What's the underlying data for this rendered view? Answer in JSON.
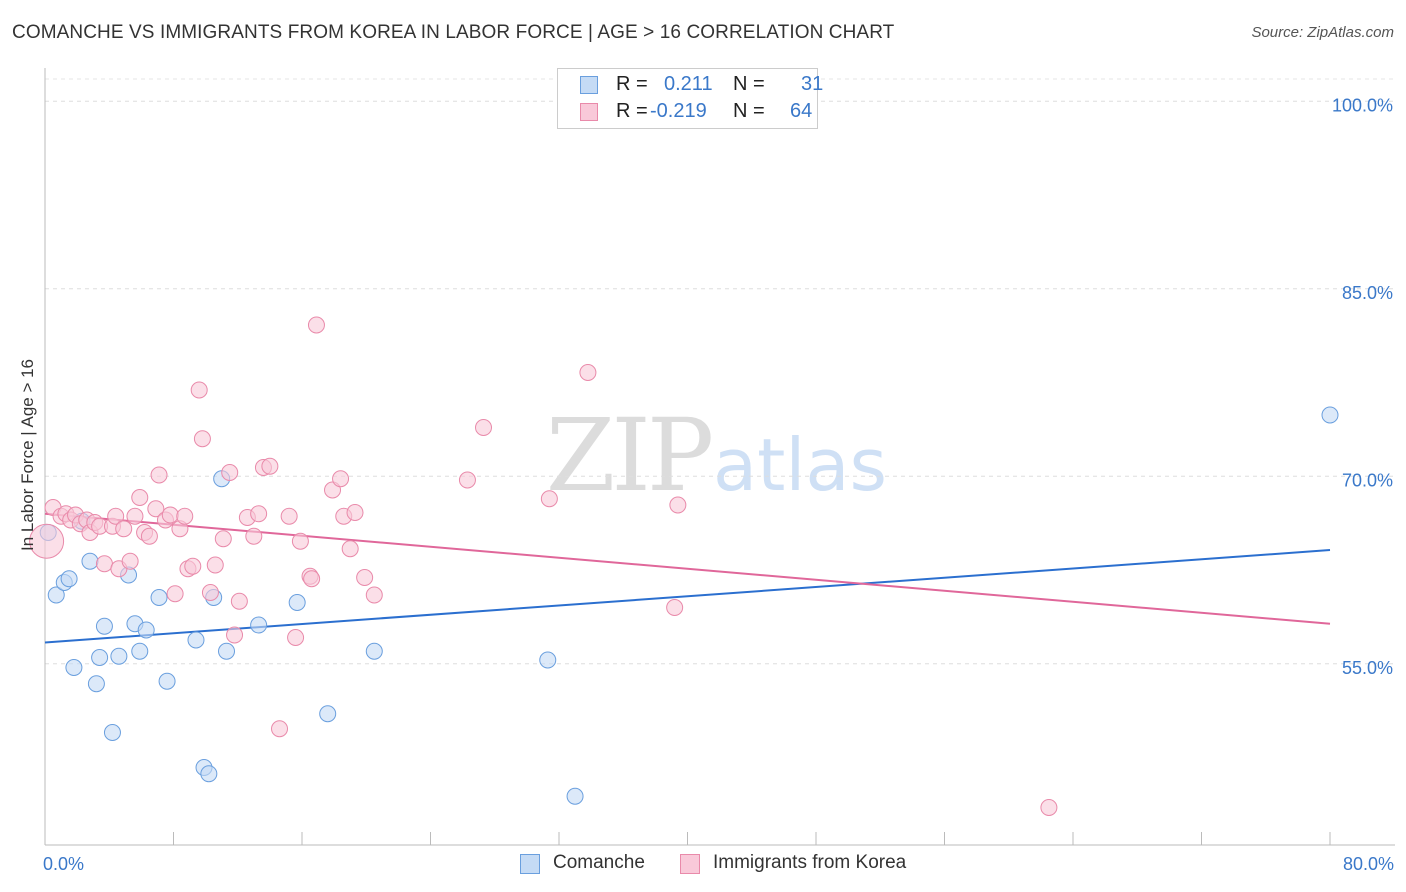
{
  "chart_data": {
    "type": "scatter",
    "title": "COMANCHE VS IMMIGRANTS FROM KOREA IN LABOR FORCE | AGE > 16 CORRELATION CHART",
    "source": "Source: ZipAtlas.com",
    "watermark": {
      "zip": "ZIP",
      "atlas": "atlas"
    },
    "xlabel": "",
    "ylabel": "In Labor Force | Age > 16",
    "xlim": [
      0,
      80
    ],
    "ylim": [
      40.5,
      102.5
    ],
    "x_tick_labels": [
      {
        "value": 0,
        "label": "0.0%"
      },
      {
        "value": 80,
        "label": "80.0%"
      }
    ],
    "y_tick_labels": [
      {
        "value": 100,
        "label": "100.0%"
      },
      {
        "value": 85,
        "label": "85.0%"
      },
      {
        "value": 70,
        "label": "70.0%"
      },
      {
        "value": 55,
        "label": "55.0%"
      }
    ],
    "x_minor_ticks": [
      0,
      8,
      16,
      24,
      32,
      40,
      48,
      56,
      64,
      72,
      80
    ],
    "grid": true,
    "legend_position": "top-center",
    "series": [
      {
        "name": "Comanche",
        "color": "#6a9fde",
        "fill": "#c5dbf5",
        "line_color": "#2b6fcf",
        "R": "0.211",
        "N": "31",
        "trend": {
          "x": [
            0,
            80
          ],
          "y": [
            56.7,
            64.1
          ]
        },
        "points": [
          [
            0.2,
            65.5
          ],
          [
            0.7,
            60.5
          ],
          [
            1.2,
            61.5
          ],
          [
            1.5,
            61.8
          ],
          [
            1.8,
            54.7
          ],
          [
            2.3,
            66.4
          ],
          [
            2.8,
            63.2
          ],
          [
            3.2,
            53.4
          ],
          [
            3.4,
            55.5
          ],
          [
            3.7,
            58.0
          ],
          [
            4.2,
            49.5
          ],
          [
            4.6,
            55.6
          ],
          [
            5.2,
            62.1
          ],
          [
            5.6,
            58.2
          ],
          [
            5.9,
            56.0
          ],
          [
            6.3,
            57.7
          ],
          [
            7.1,
            60.3
          ],
          [
            7.6,
            53.6
          ],
          [
            9.4,
            56.9
          ],
          [
            9.9,
            46.7
          ],
          [
            10.2,
            46.2
          ],
          [
            10.5,
            60.3
          ],
          [
            11.0,
            69.8
          ],
          [
            11.3,
            56.0
          ],
          [
            13.3,
            58.1
          ],
          [
            15.7,
            59.9
          ],
          [
            17.6,
            51.0
          ],
          [
            20.5,
            56.0
          ],
          [
            31.3,
            55.3
          ],
          [
            33.0,
            44.4
          ],
          [
            80.0,
            74.9
          ]
        ]
      },
      {
        "name": "Immigrants from Korea",
        "color": "#e98aaa",
        "fill": "#f9c9d9",
        "line_color": "#e0679a",
        "R": "-0.219",
        "N": "64",
        "trend": {
          "x": [
            0,
            80
          ],
          "y": [
            67.0,
            58.2
          ]
        },
        "points": [
          [
            0.1,
            64.8
          ],
          [
            0.5,
            67.5
          ],
          [
            1.0,
            66.8
          ],
          [
            1.3,
            67.0
          ],
          [
            1.6,
            66.5
          ],
          [
            1.9,
            66.9
          ],
          [
            2.2,
            66.2
          ],
          [
            2.6,
            66.5
          ],
          [
            2.8,
            65.5
          ],
          [
            3.1,
            66.3
          ],
          [
            3.4,
            66.0
          ],
          [
            3.7,
            63.0
          ],
          [
            4.2,
            66.0
          ],
          [
            4.4,
            66.8
          ],
          [
            4.6,
            62.6
          ],
          [
            4.9,
            65.8
          ],
          [
            5.3,
            63.2
          ],
          [
            5.6,
            66.8
          ],
          [
            5.9,
            68.3
          ],
          [
            6.2,
            65.5
          ],
          [
            6.5,
            65.2
          ],
          [
            6.9,
            67.4
          ],
          [
            7.1,
            70.1
          ],
          [
            7.5,
            66.5
          ],
          [
            7.8,
            66.9
          ],
          [
            8.1,
            60.6
          ],
          [
            8.4,
            65.8
          ],
          [
            8.7,
            66.8
          ],
          [
            8.9,
            62.6
          ],
          [
            9.2,
            62.8
          ],
          [
            9.6,
            76.9
          ],
          [
            9.8,
            73.0
          ],
          [
            10.3,
            60.7
          ],
          [
            10.6,
            62.9
          ],
          [
            11.1,
            65.0
          ],
          [
            11.5,
            70.3
          ],
          [
            11.8,
            57.3
          ],
          [
            12.1,
            60.0
          ],
          [
            12.6,
            66.7
          ],
          [
            13.0,
            65.2
          ],
          [
            13.3,
            67.0
          ],
          [
            13.6,
            70.7
          ],
          [
            14.0,
            70.8
          ],
          [
            14.6,
            49.8
          ],
          [
            15.2,
            66.8
          ],
          [
            15.6,
            57.1
          ],
          [
            15.9,
            64.8
          ],
          [
            16.5,
            62.0
          ],
          [
            16.6,
            61.8
          ],
          [
            16.9,
            82.1
          ],
          [
            17.9,
            68.9
          ],
          [
            18.4,
            69.8
          ],
          [
            18.6,
            66.8
          ],
          [
            19.0,
            64.2
          ],
          [
            19.3,
            67.1
          ],
          [
            19.9,
            61.9
          ],
          [
            20.5,
            60.5
          ],
          [
            26.3,
            69.7
          ],
          [
            27.3,
            73.9
          ],
          [
            31.4,
            68.2
          ],
          [
            33.8,
            78.3
          ],
          [
            39.2,
            59.5
          ],
          [
            39.4,
            67.7
          ],
          [
            62.5,
            43.5
          ]
        ]
      }
    ]
  }
}
